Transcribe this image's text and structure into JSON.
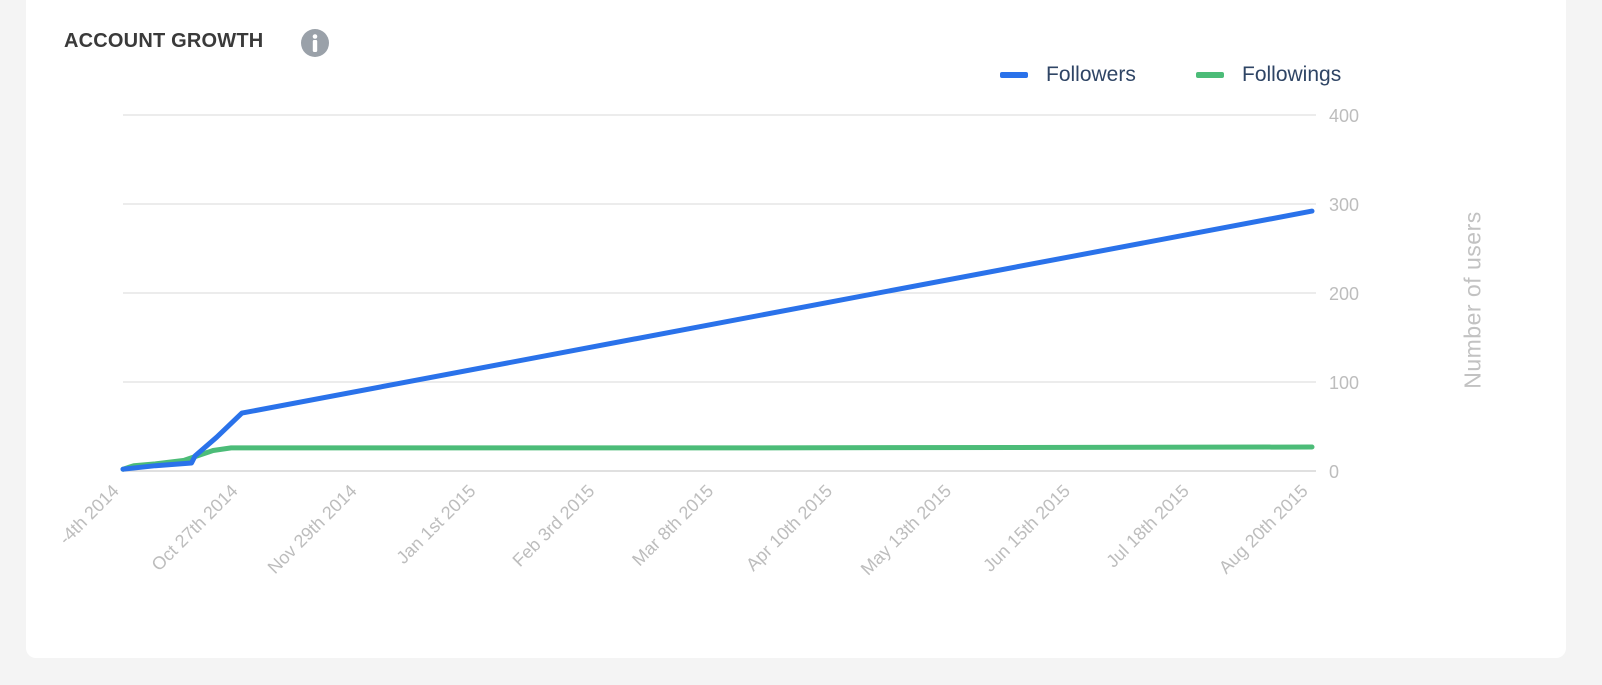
{
  "title": "ACCOUNT GROWTH",
  "info_icon": "info-icon",
  "chart_data": {
    "type": "line",
    "title": "ACCOUNT GROWTH",
    "ylabel": "Number of users",
    "xlabel": "",
    "ylim": [
      0,
      400
    ],
    "yticks": [
      0,
      100,
      200,
      300,
      400
    ],
    "grid": true,
    "legend_position": "top-right",
    "x_tick_labels": [
      "-4th 2014",
      "Oct 27th 2014",
      "Nov 29th 2014",
      "Jan 1st 2015",
      "Feb 3rd 2015",
      "Mar 8th 2015",
      "Apr 10th 2015",
      "May 13th 2015",
      "Jun 15th 2015",
      "Jul 18th 2015",
      "Aug 20th 2015"
    ],
    "series": [
      {
        "name": "Followers",
        "color": "#2a72ea",
        "points": [
          {
            "x": "Sep 24th 2014",
            "y": 2
          },
          {
            "x": "Oct 3rd 2014",
            "y": 6
          },
          {
            "x": "Oct 13th 2014",
            "y": 9
          },
          {
            "x": "Oct 14th 2014",
            "y": 17
          },
          {
            "x": "Oct 20th 2014",
            "y": 38
          },
          {
            "x": "Oct 27th 2014",
            "y": 65
          },
          {
            "x": "Aug 20th 2015",
            "y": 292
          }
        ]
      },
      {
        "name": "Followings",
        "color": "#4cbc78",
        "points": [
          {
            "x": "Sep 24th 2014",
            "y": 2
          },
          {
            "x": "Sep 27th 2014",
            "y": 6
          },
          {
            "x": "Oct 3rd 2014",
            "y": 8
          },
          {
            "x": "Oct 11th 2014",
            "y": 12
          },
          {
            "x": "Oct 19th 2014",
            "y": 23
          },
          {
            "x": "Oct 24th 2014",
            "y": 26
          },
          {
            "x": "Oct 27th 2014",
            "y": 26
          },
          {
            "x": "Mar 8th 2015",
            "y": 26
          },
          {
            "x": "Aug 20th 2015",
            "y": 27
          }
        ]
      }
    ]
  }
}
